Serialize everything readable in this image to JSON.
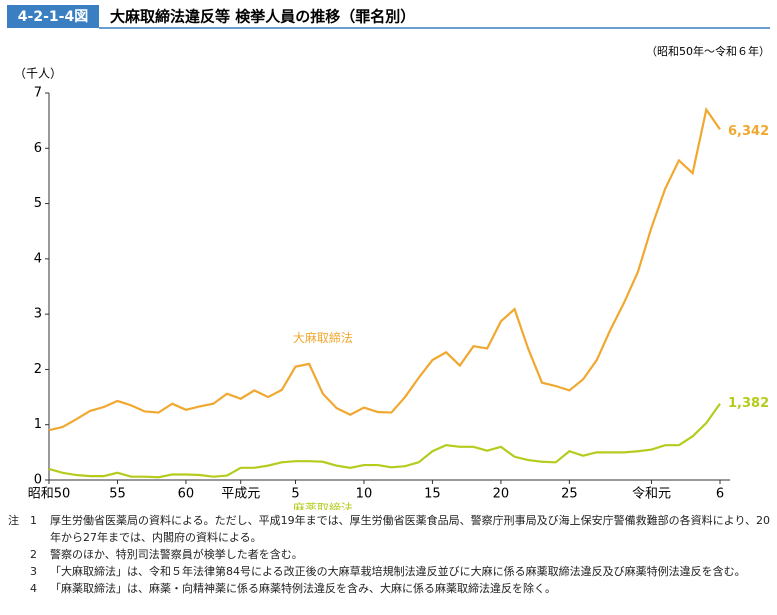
{
  "header": {
    "figure_no": "4-2-1-4図",
    "title": "大麻取締法違反等 検挙人員の推移（罪名別）",
    "period": "（昭和50年～令和６年）"
  },
  "chart_data": {
    "type": "line",
    "y_label": "（千人）",
    "categories": [
      "昭和50",
      null,
      null,
      null,
      null,
      "55",
      null,
      null,
      null,
      null,
      "60",
      null,
      null,
      null,
      "平成元",
      null,
      null,
      null,
      "5",
      null,
      null,
      null,
      null,
      "10",
      null,
      null,
      null,
      null,
      "15",
      null,
      null,
      null,
      null,
      "20",
      null,
      null,
      null,
      null,
      "25",
      null,
      null,
      null,
      null,
      null,
      "令和元",
      null,
      null,
      null,
      null,
      "6"
    ],
    "series": [
      {
        "name": "大麻取締法",
        "color": "#f0a830",
        "values": [
          0.9,
          0.96,
          1.1,
          1.25,
          1.32,
          1.43,
          1.35,
          1.24,
          1.22,
          1.38,
          1.27,
          1.33,
          1.38,
          1.56,
          1.47,
          1.62,
          1.5,
          1.63,
          2.05,
          2.1,
          1.56,
          1.3,
          1.18,
          1.31,
          1.23,
          1.22,
          1.5,
          1.85,
          2.17,
          2.31,
          2.07,
          2.42,
          2.38,
          2.87,
          3.09,
          2.37,
          1.76,
          1.7,
          1.62,
          1.82,
          2.17,
          2.72,
          3.21,
          3.76,
          4.57,
          5.27,
          5.78,
          5.55,
          6.7,
          6.342
        ],
        "value_labels": [
          null,
          null,
          null,
          null,
          null,
          null,
          null,
          null,
          null,
          null,
          null,
          null,
          null,
          null,
          null,
          null,
          null,
          null,
          null,
          null,
          null,
          null,
          null,
          null,
          null,
          null,
          null,
          null,
          null,
          null,
          null,
          null,
          null,
          null,
          null,
          null,
          null,
          null,
          null,
          null,
          null,
          null,
          null,
          null,
          null,
          null,
          null,
          null,
          null,
          "6,342"
        ]
      },
      {
        "name": "麻薬取締法",
        "color": "#b5cc1e",
        "values": [
          0.2,
          0.13,
          0.09,
          0.07,
          0.07,
          0.13,
          0.06,
          0.06,
          0.05,
          0.1,
          0.1,
          0.09,
          0.06,
          0.08,
          0.22,
          0.22,
          0.26,
          0.32,
          0.34,
          0.34,
          0.33,
          0.26,
          0.22,
          0.27,
          0.27,
          0.23,
          0.25,
          0.32,
          0.52,
          0.63,
          0.6,
          0.6,
          0.53,
          0.6,
          0.42,
          0.36,
          0.33,
          0.32,
          0.52,
          0.44,
          0.5,
          0.5,
          0.5,
          0.52,
          0.55,
          0.63,
          0.63,
          0.79,
          1.03,
          1.382
        ],
        "value_labels": [
          null,
          null,
          null,
          null,
          null,
          null,
          null,
          null,
          null,
          null,
          null,
          null,
          null,
          null,
          null,
          null,
          null,
          null,
          null,
          null,
          null,
          null,
          null,
          null,
          null,
          null,
          null,
          null,
          null,
          null,
          null,
          null,
          null,
          null,
          null,
          null,
          null,
          null,
          null,
          null,
          null,
          null,
          null,
          null,
          null,
          null,
          null,
          null,
          null,
          "1,382"
        ]
      }
    ],
    "ylim": [
      0,
      7
    ],
    "yticks": [
      0,
      1,
      2,
      3,
      4,
      5,
      6,
      7
    ]
  },
  "notes": {
    "mark": "注",
    "items": [
      {
        "num": "1",
        "text": "厚生労働省医薬局の資料による。ただし、平成19年までは、厚生労働省医薬食品局、警察庁刑事局及び海上保安庁警備救難部の各資料により、20年から27年までは、内閣府の資料による。"
      },
      {
        "num": "2",
        "text": "警察のほか、特別司法警察員が検挙した者を含む。"
      },
      {
        "num": "3",
        "text": "「大麻取締法」は、令和５年法律第84号による改正後の大麻草栽培規制法違反並びに大麻に係る麻薬取締法違反及び麻薬特例法違反を含む。"
      },
      {
        "num": "4",
        "text": "「麻薬取締法」は、麻薬・向精神薬に係る麻薬特例法違反を含み、大麻に係る麻薬取締法違反を除く。"
      }
    ]
  }
}
